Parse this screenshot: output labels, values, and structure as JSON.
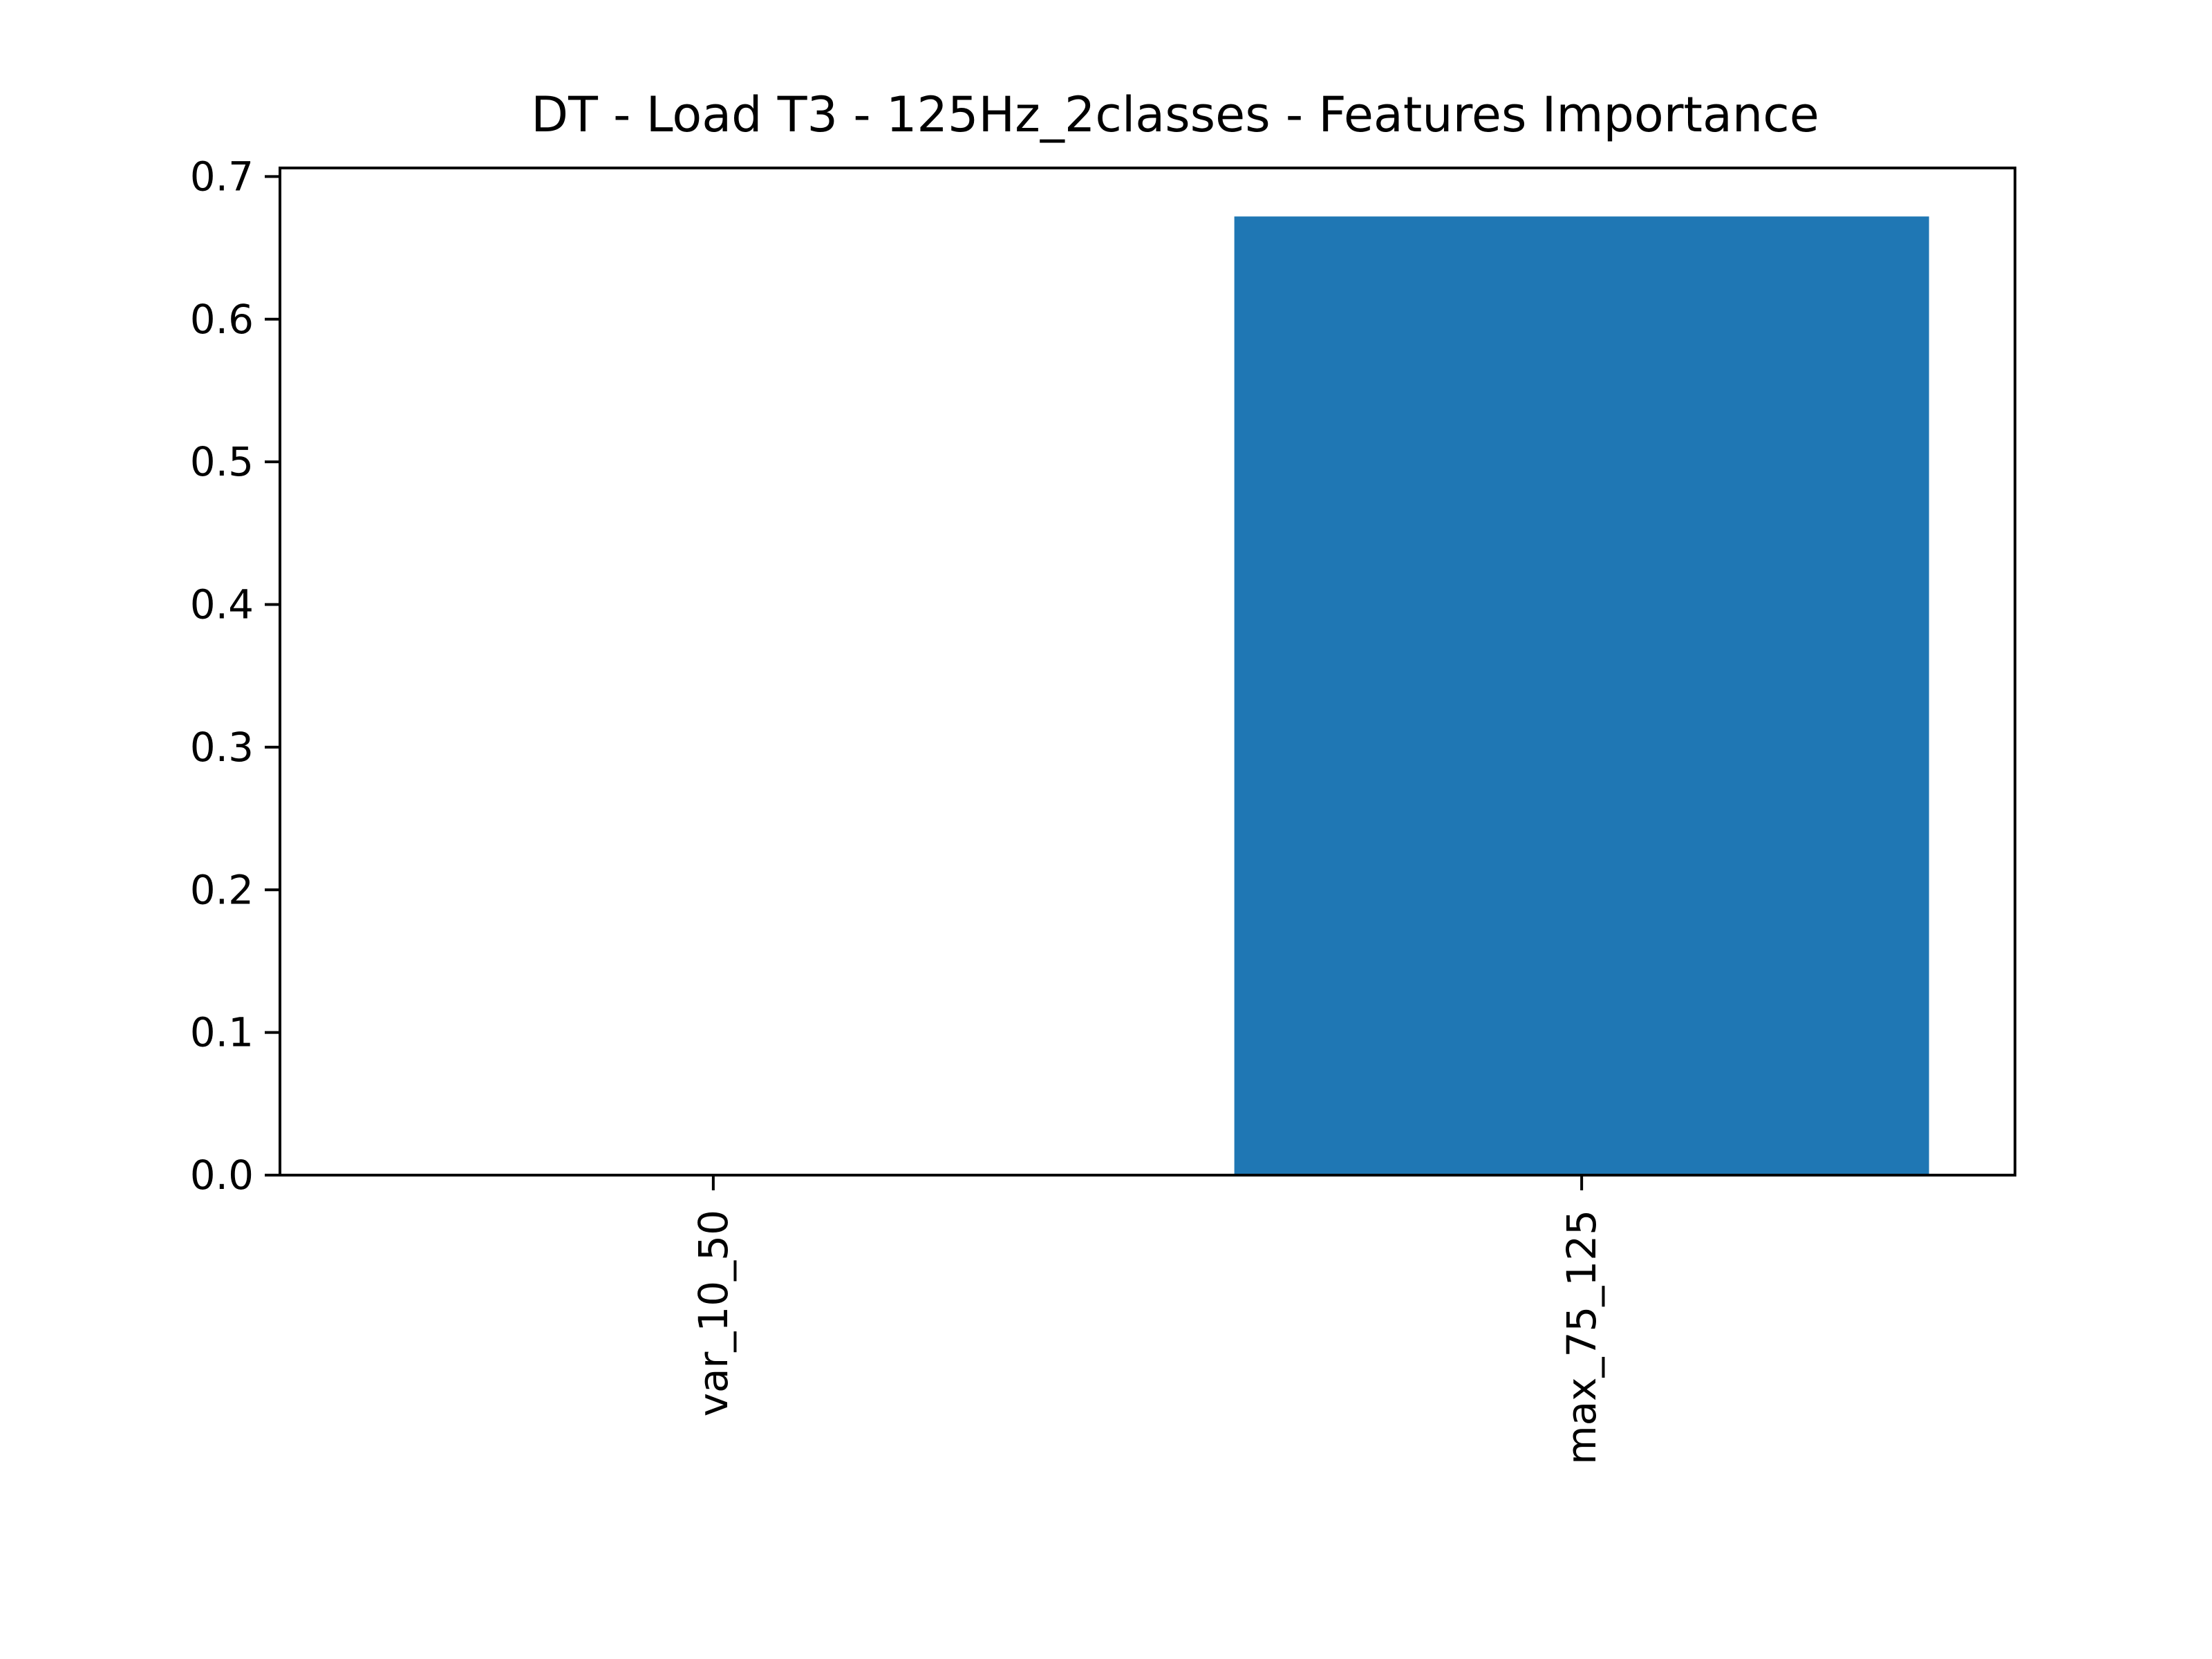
{
  "chart_data": {
    "type": "bar",
    "title": "DT - Load T3 - 125Hz_2classes - Features Importance",
    "xlabel": "",
    "ylabel": "",
    "categories": [
      "var_10_50",
      "max_75_125"
    ],
    "values": [
      0.0,
      0.672
    ],
    "ylim": [
      0,
      0.706
    ],
    "yticks": [
      "0.0",
      "0.1",
      "0.2",
      "0.3",
      "0.4",
      "0.5",
      "0.6",
      "0.7"
    ],
    "bar_color": "#1f77b4",
    "grid": false,
    "legend": "none"
  }
}
